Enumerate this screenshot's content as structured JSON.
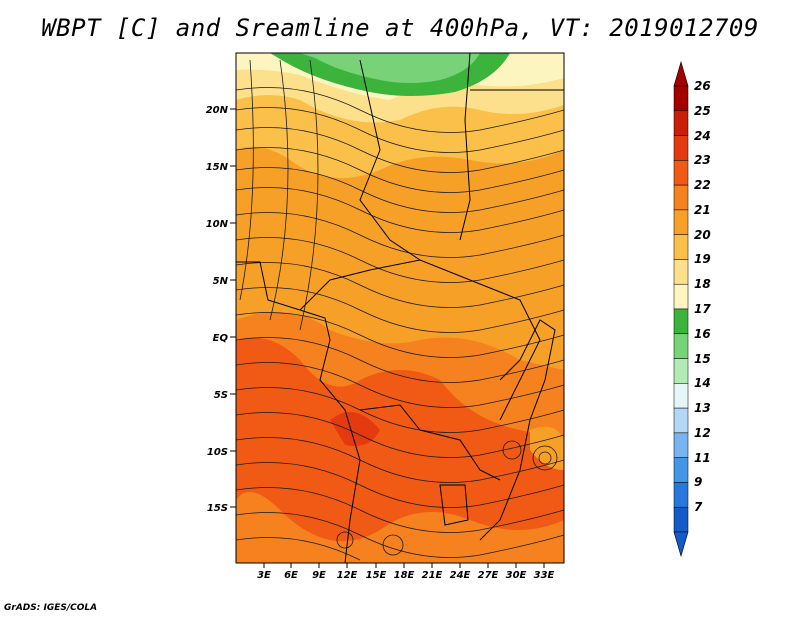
{
  "title": "WBPT [C] and Sreamline at 400hPa, VT: 2019012709",
  "footer": "GrADS: IGES/COLA",
  "lat_labels": [
    "20N",
    "15N",
    "10N",
    "5N",
    "EQ",
    "5S",
    "10S",
    "15S"
  ],
  "lon_labels": [
    "3E",
    "6E",
    "9E",
    "12E",
    "15E",
    "18E",
    "21E",
    "24E",
    "27E",
    "30E",
    "33E"
  ],
  "colorbar": {
    "labels": [
      "26",
      "25",
      "24",
      "23",
      "22",
      "21",
      "20",
      "19",
      "18",
      "17",
      "16",
      "15",
      "14",
      "13",
      "12",
      "11",
      "9",
      "7"
    ],
    "colors": [
      "#a50000",
      "#c81e0a",
      "#e33b0f",
      "#f05a14",
      "#f5821e",
      "#f7a028",
      "#fbc04a",
      "#fde08c",
      "#fdf5c0",
      "#3cb43c",
      "#78d278",
      "#b4ebb4",
      "#e6f5f5",
      "#b4d7f5",
      "#78b4f0",
      "#4696e6",
      "#2878dc",
      "#145ac8"
    ]
  }
}
